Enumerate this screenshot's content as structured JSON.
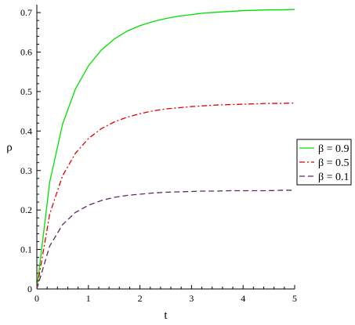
{
  "chart_data": {
    "type": "line",
    "xlabel": "t",
    "ylabel": "ρ",
    "xlim": [
      0,
      5
    ],
    "ylim": [
      0,
      0.72
    ],
    "x_ticks": [
      "0",
      "1",
      "2",
      "3",
      "4",
      "5"
    ],
    "y_ticks": [
      "0",
      "0.1",
      "0.2",
      "0.3",
      "0.4",
      "0.5",
      "0.6",
      "0.7"
    ],
    "legend_placement": "right",
    "grid": false,
    "x": [
      0,
      0.25,
      0.5,
      0.75,
      1,
      1.25,
      1.5,
      1.75,
      2,
      2.25,
      2.5,
      2.75,
      3,
      3.25,
      3.5,
      3.75,
      4,
      4.25,
      4.5,
      4.75,
      5
    ],
    "series": [
      {
        "name": "β = 0.9",
        "color": "#00e000",
        "dash": "solid",
        "values": [
          0,
          0.271,
          0.418,
          0.507,
          0.565,
          0.605,
          0.633,
          0.653,
          0.667,
          0.677,
          0.685,
          0.691,
          0.695,
          0.699,
          0.701,
          0.703,
          0.705,
          0.706,
          0.707,
          0.707,
          0.708
        ]
      },
      {
        "name": "β = 0.5",
        "color": "#e00000",
        "dash": "dash-dot",
        "values": [
          0,
          0.19,
          0.287,
          0.344,
          0.381,
          0.406,
          0.423,
          0.435,
          0.444,
          0.451,
          0.456,
          0.459,
          0.462,
          0.464,
          0.466,
          0.467,
          0.468,
          0.469,
          0.47,
          0.47,
          0.471
        ]
      },
      {
        "name": "β = 0.1",
        "color": "#5a2a5e",
        "dash": "dash",
        "values": [
          0,
          0.109,
          0.163,
          0.194,
          0.212,
          0.224,
          0.232,
          0.237,
          0.24,
          0.243,
          0.245,
          0.246,
          0.247,
          0.248,
          0.248,
          0.249,
          0.249,
          0.249,
          0.249,
          0.25,
          0.25
        ]
      }
    ]
  }
}
